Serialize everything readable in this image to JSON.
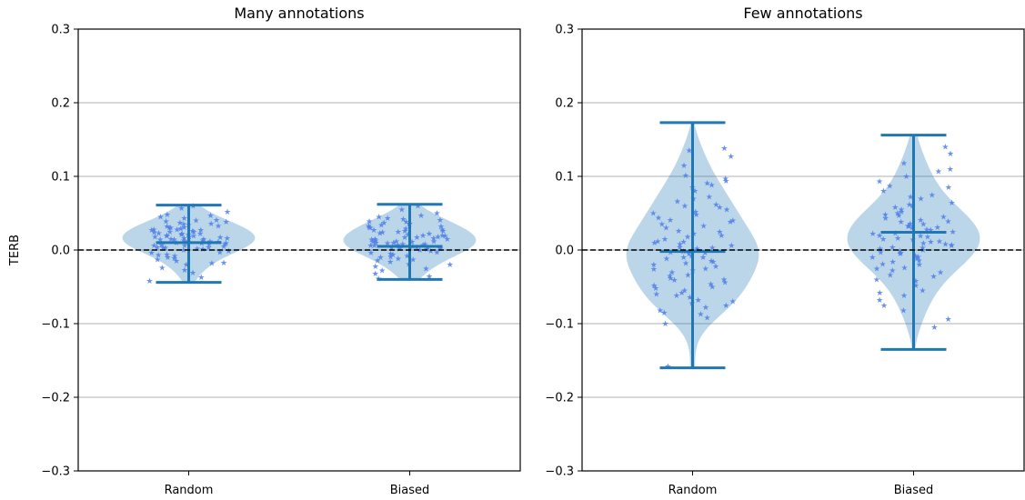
{
  "chart_data": [
    {
      "type": "violin",
      "title": "Many annotations",
      "ylabel": "TERB",
      "xlabel": "",
      "ylim": [
        -0.3,
        0.3
      ],
      "yticks": [
        -0.3,
        -0.2,
        -0.1,
        0.0,
        0.1,
        0.2,
        0.3
      ],
      "ytick_labels": [
        "−0.3",
        "−0.2",
        "−0.1",
        "0.0",
        "0.1",
        "0.2",
        "0.3"
      ],
      "grid": "horizontal",
      "reference_line": 0.0,
      "categories": [
        "Random",
        "Biased"
      ],
      "series": [
        {
          "category": "Random",
          "min": -0.044,
          "median": 0.01,
          "max": 0.061,
          "point_spread": 0.014,
          "points": [
            0.012,
            0.025,
            0.004,
            -0.01,
            0.031,
            0.018,
            0.006,
            -0.003,
            0.04,
            0.021,
            0.015,
            -0.018,
            0.009,
            0.028,
            0.034,
            -0.006,
            0.001,
            0.045,
            0.019,
            0.011,
            -0.024,
            0.027,
            0.008,
            0.052,
            -0.013,
            0.016,
            0.038,
            0.003,
            0.022,
            -0.031,
            0.013,
            0.03,
            0.007,
            -0.001,
            0.043,
            0.02,
            0.026,
            -0.008,
            0.014,
            0.036,
            0.01,
            -0.015,
            0.024,
            0.005,
            0.048,
            0.017,
            -0.02,
            0.032,
            0.002,
            0.029,
            0.012,
            -0.037,
            0.023,
            0.039,
            0.006,
            0.018,
            -0.004,
            0.057,
            0.015,
            0.027,
            0.009,
            -0.011,
            0.035,
            0.021,
            0.0,
            0.041,
            -0.027,
            0.013,
            0.03,
            0.019,
            0.004,
            -0.007,
            0.025,
            0.047,
            0.011,
            0.016,
            -0.017,
            0.033,
            0.008,
            0.022,
            0.06,
            -0.042,
            0.014,
            0.028,
            0.003,
            0.037
          ]
        },
        {
          "category": "Biased",
          "min": -0.04,
          "median": 0.005,
          "max": 0.062,
          "point_spread": 0.014,
          "points": [
            0.008,
            0.022,
            -0.005,
            0.015,
            0.031,
            -0.012,
            0.004,
            0.026,
            0.01,
            -0.02,
            0.038,
            0.002,
            0.017,
            -0.008,
            0.045,
            0.012,
            0.028,
            -0.016,
            0.006,
            0.034,
            0.001,
            -0.025,
            0.02,
            0.041,
            0.009,
            -0.003,
            0.024,
            0.014,
            -0.032,
            0.03,
            0.005,
            0.05,
            0.018,
            -0.01,
            0.036,
            0.011,
            0.003,
            -0.019,
            0.027,
            0.007,
            0.043,
            -0.006,
            0.016,
            0.023,
            -0.028,
            0.033,
            0.0,
            0.013,
            0.055,
            -0.014,
            0.021,
            0.008,
            0.039,
            -0.001,
            0.029,
            -0.036,
            0.012,
            0.019,
            0.004,
            0.047,
            -0.009,
            0.025,
            0.015,
            0.032,
            -0.022,
            0.006,
            0.037,
            0.01,
            -0.004,
            0.06,
            0.017,
            0.002,
            -0.013,
            0.026,
            0.011,
            0.042,
            -0.039,
            0.02,
            0.007,
            0.035
          ]
        }
      ]
    },
    {
      "type": "violin",
      "title": "Few annotations",
      "ylabel": "",
      "xlabel": "",
      "ylim": [
        -0.3,
        0.3
      ],
      "yticks": [
        -0.3,
        -0.2,
        -0.1,
        0.0,
        0.1,
        0.2,
        0.3
      ],
      "ytick_labels": [
        "−0.3",
        "−0.2",
        "−0.1",
        "0.0",
        "0.1",
        "0.2",
        "0.3"
      ],
      "grid": "horizontal",
      "reference_line": 0.0,
      "categories": [
        "Random",
        "Biased"
      ],
      "series": [
        {
          "category": "Random",
          "min": -0.16,
          "median": -0.002,
          "max": 0.173,
          "point_spread": 0.024,
          "points": [
            0.094,
            0.091,
            0.135,
            0.127,
            0.138,
            0.101,
            0.085,
            0.072,
            0.062,
            0.055,
            0.048,
            0.04,
            0.033,
            0.025,
            0.018,
            0.012,
            0.006,
            0.002,
            -0.004,
            -0.01,
            -0.016,
            -0.022,
            -0.028,
            -0.034,
            -0.04,
            -0.046,
            -0.052,
            -0.058,
            -0.064,
            -0.07,
            -0.078,
            -0.085,
            -0.092,
            -0.1,
            -0.158,
            0.08,
            0.066,
            0.05,
            0.038,
            0.022,
            0.01,
            -0.002,
            -0.012,
            -0.025,
            -0.038,
            -0.05,
            -0.062,
            -0.075,
            -0.087,
            0.115,
            0.058,
            0.03,
            0.004,
            -0.018,
            -0.044,
            -0.068,
            0.044,
            0.015,
            -0.008,
            -0.03,
            -0.055,
            0.07,
            0.026,
            -0.02,
            -0.06,
            0.003,
            -0.005,
            0.0,
            0.097,
            -0.082,
            0.06,
            -0.035,
            0.011,
            -0.048,
            0.035,
            -0.015,
            0.02,
            -0.026,
            0.052,
            -0.041,
            0.008,
            -0.003,
            0.088,
            -0.072,
            0.041,
            -0.01
          ]
        },
        {
          "category": "Biased",
          "min": -0.135,
          "median": 0.024,
          "max": 0.156,
          "point_spread": 0.024,
          "points": [
            0.14,
            0.131,
            0.118,
            0.11,
            0.107,
            0.1,
            0.093,
            0.087,
            0.08,
            0.075,
            0.07,
            0.064,
            0.058,
            0.052,
            0.047,
            0.043,
            0.039,
            0.035,
            0.031,
            0.027,
            0.023,
            0.019,
            0.015,
            0.011,
            0.007,
            0.003,
            -0.001,
            -0.005,
            -0.009,
            -0.014,
            -0.019,
            -0.024,
            -0.03,
            -0.036,
            -0.042,
            -0.048,
            -0.055,
            -0.062,
            -0.068,
            -0.075,
            -0.082,
            -0.094,
            -0.105,
            0.085,
            0.062,
            0.045,
            0.032,
            0.02,
            0.008,
            -0.004,
            -0.016,
            -0.028,
            -0.04,
            0.055,
            0.038,
            0.025,
            0.012,
            0.0,
            -0.012,
            -0.025,
            0.072,
            0.048,
            0.03,
            0.016,
            0.004,
            -0.008,
            -0.02,
            -0.034,
            0.041,
            0.028,
            0.014,
            0.002,
            -0.01,
            0.06,
            0.036,
            0.022,
            0.009,
            -0.003,
            -0.058,
            0.05,
            0.033,
            0.018,
            0.006
          ]
        }
      ]
    }
  ]
}
